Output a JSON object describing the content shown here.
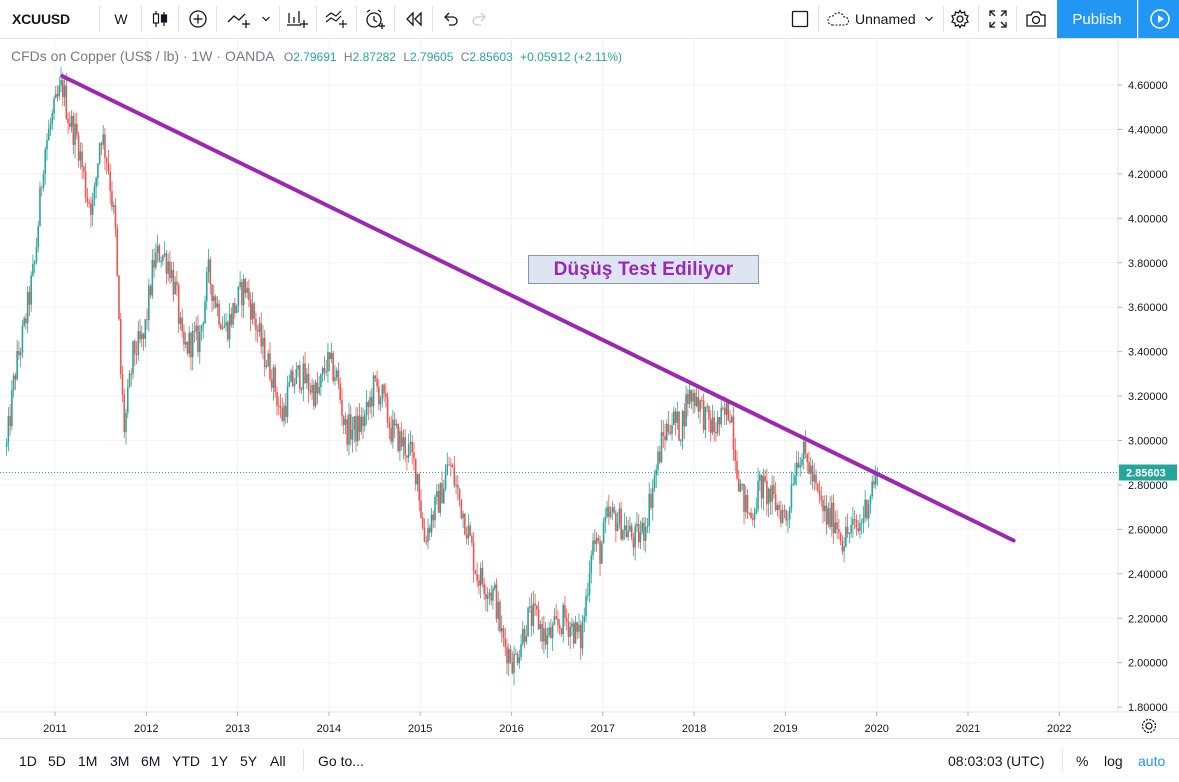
{
  "toolbar": {
    "symbol": "XCUUSD",
    "interval": "W",
    "layout_name": "Unnamed",
    "publish_label": "Publish"
  },
  "legend": {
    "title": "CFDs on Copper (US$ / lb) · 1W · OANDA",
    "open_label": "O",
    "open": "2.79691",
    "high_label": "H",
    "high": "2.87282",
    "low_label": "L",
    "low": "2.79605",
    "close_label": "C",
    "close": "2.85603",
    "change": "+0.05912 (+2.11%)"
  },
  "colors": {
    "up": "#26a69a",
    "down": "#ef5350",
    "trendline": "#9c27b0",
    "accent": "#2196f3",
    "price_line": "#26a69a"
  },
  "annotation": {
    "text": "Düşüş Test Ediliyor"
  },
  "bottom": {
    "ranges": [
      "1D",
      "5D",
      "1M",
      "3M",
      "6M",
      "YTD",
      "1Y",
      "5Y",
      "All"
    ],
    "goto": "Go to...",
    "clock": "08:03:03 (UTC)",
    "percent": "%",
    "log": "log",
    "auto": "auto"
  },
  "chart_data": {
    "type": "candlestick",
    "interval": "1W",
    "symbol": "XCUUSD",
    "y_ticks": [
      "1.80000",
      "2.00000",
      "2.20000",
      "2.40000",
      "2.60000",
      "2.80000",
      "3.00000",
      "3.20000",
      "3.40000",
      "3.60000",
      "3.80000",
      "4.00000",
      "4.20000",
      "4.40000",
      "4.60000"
    ],
    "x_ticks": [
      "2011",
      "2012",
      "2013",
      "2014",
      "2015",
      "2016",
      "2017",
      "2018",
      "2019",
      "2020",
      "2021",
      "2022"
    ],
    "ylim": [
      1.76,
      4.71
    ],
    "xlim": [
      2010.45,
      2022.6
    ],
    "last_price": "2.85603",
    "grid": true,
    "trendline": {
      "start": [
        2011.08,
        4.64
      ],
      "end": [
        2021.5,
        2.55
      ]
    },
    "path_points": [
      [
        2010.47,
        2.97
      ],
      [
        2010.56,
        3.3
      ],
      [
        2010.66,
        3.5
      ],
      [
        2010.78,
        3.8
      ],
      [
        2010.88,
        4.3
      ],
      [
        2010.97,
        4.45
      ],
      [
        2011.08,
        4.6
      ],
      [
        2011.15,
        4.45
      ],
      [
        2011.25,
        4.35
      ],
      [
        2011.35,
        4.1
      ],
      [
        2011.42,
        4.05
      ],
      [
        2011.5,
        4.4
      ],
      [
        2011.58,
        4.25
      ],
      [
        2011.66,
        3.95
      ],
      [
        2011.72,
        3.3
      ],
      [
        2011.76,
        3.05
      ],
      [
        2011.86,
        3.4
      ],
      [
        2011.97,
        3.45
      ],
      [
        2012.08,
        3.8
      ],
      [
        2012.15,
        3.85
      ],
      [
        2012.25,
        3.8
      ],
      [
        2012.33,
        3.65
      ],
      [
        2012.4,
        3.4
      ],
      [
        2012.5,
        3.45
      ],
      [
        2012.58,
        3.45
      ],
      [
        2012.68,
        3.75
      ],
      [
        2012.78,
        3.6
      ],
      [
        2012.87,
        3.5
      ],
      [
        2012.97,
        3.6
      ],
      [
        2013.08,
        3.7
      ],
      [
        2013.15,
        3.6
      ],
      [
        2013.28,
        3.4
      ],
      [
        2013.38,
        3.3
      ],
      [
        2013.48,
        3.1
      ],
      [
        2013.58,
        3.25
      ],
      [
        2013.68,
        3.3
      ],
      [
        2013.78,
        3.25
      ],
      [
        2013.88,
        3.2
      ],
      [
        2013.97,
        3.35
      ],
      [
        2014.08,
        3.3
      ],
      [
        2014.18,
        3.05
      ],
      [
        2014.3,
        3.05
      ],
      [
        2014.4,
        3.1
      ],
      [
        2014.5,
        3.25
      ],
      [
        2014.58,
        3.2
      ],
      [
        2014.68,
        3.05
      ],
      [
        2014.78,
        3.0
      ],
      [
        2014.88,
        2.95
      ],
      [
        2014.97,
        2.85
      ],
      [
        2015.04,
        2.55
      ],
      [
        2015.12,
        2.65
      ],
      [
        2015.22,
        2.75
      ],
      [
        2015.32,
        2.9
      ],
      [
        2015.42,
        2.75
      ],
      [
        2015.52,
        2.6
      ],
      [
        2015.62,
        2.4
      ],
      [
        2015.72,
        2.35
      ],
      [
        2015.82,
        2.3
      ],
      [
        2015.9,
        2.1
      ],
      [
        2015.97,
        2.05
      ],
      [
        2016.03,
        2.0
      ],
      [
        2016.1,
        2.1
      ],
      [
        2016.18,
        2.2
      ],
      [
        2016.28,
        2.2
      ],
      [
        2016.38,
        2.1
      ],
      [
        2016.48,
        2.15
      ],
      [
        2016.58,
        2.2
      ],
      [
        2016.68,
        2.15
      ],
      [
        2016.76,
        2.1
      ],
      [
        2016.82,
        2.3
      ],
      [
        2016.88,
        2.55
      ],
      [
        2016.97,
        2.5
      ],
      [
        2017.05,
        2.65
      ],
      [
        2017.15,
        2.65
      ],
      [
        2017.25,
        2.6
      ],
      [
        2017.35,
        2.55
      ],
      [
        2017.45,
        2.6
      ],
      [
        2017.55,
        2.8
      ],
      [
        2017.65,
        3.0
      ],
      [
        2017.75,
        3.1
      ],
      [
        2017.85,
        3.05
      ],
      [
        2017.93,
        3.2
      ],
      [
        2018.03,
        3.2
      ],
      [
        2018.12,
        3.1
      ],
      [
        2018.22,
        3.05
      ],
      [
        2018.32,
        3.1
      ],
      [
        2018.4,
        3.15
      ],
      [
        2018.45,
        2.95
      ],
      [
        2018.52,
        2.75
      ],
      [
        2018.62,
        2.65
      ],
      [
        2018.72,
        2.8
      ],
      [
        2018.82,
        2.75
      ],
      [
        2018.92,
        2.7
      ],
      [
        2019.02,
        2.65
      ],
      [
        2019.08,
        2.85
      ],
      [
        2019.15,
        2.95
      ],
      [
        2019.25,
        2.9
      ],
      [
        2019.35,
        2.75
      ],
      [
        2019.45,
        2.65
      ],
      [
        2019.55,
        2.65
      ],
      [
        2019.63,
        2.55
      ],
      [
        2019.72,
        2.6
      ],
      [
        2019.8,
        2.6
      ],
      [
        2019.88,
        2.7
      ],
      [
        2019.95,
        2.8
      ],
      [
        2020.01,
        2.86
      ]
    ]
  }
}
